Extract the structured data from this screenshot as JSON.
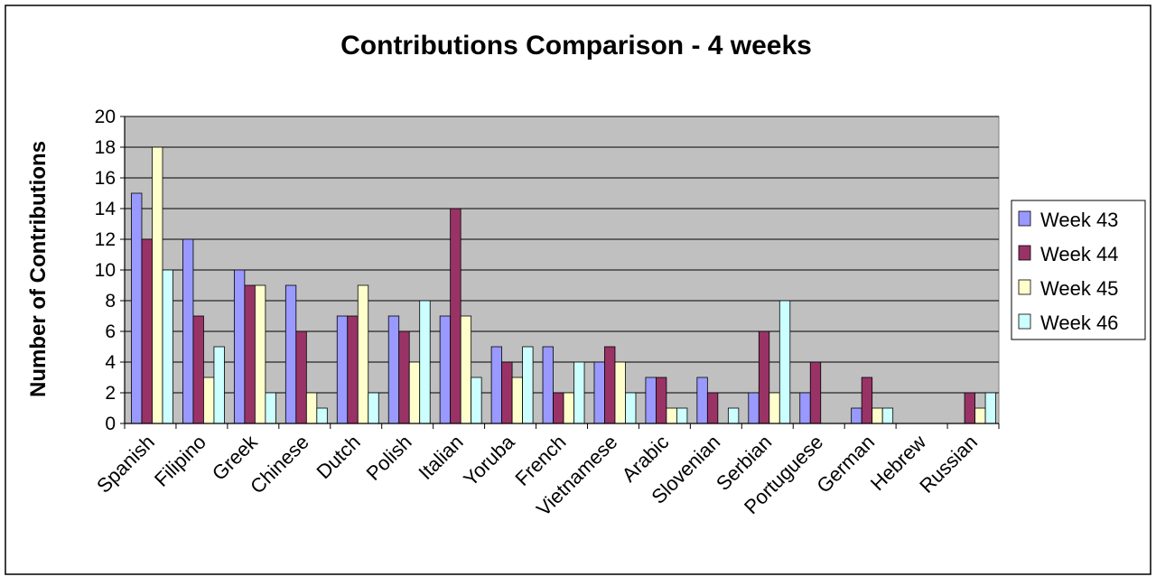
{
  "chart_data": {
    "type": "bar",
    "title": "Contributions Comparison - 4 weeks",
    "xlabel": "",
    "ylabel": "Number of Contributions",
    "ylim": [
      0,
      20
    ],
    "yticks": [
      "0",
      "2",
      "4",
      "6",
      "8",
      "10",
      "12",
      "14",
      "16",
      "18",
      "20"
    ],
    "grid": true,
    "legend_position": "right",
    "categories": [
      "Spanish",
      "Filipino",
      "Greek",
      "Chinese",
      "Dutch",
      "Polish",
      "Italian",
      "Yoruba",
      "French",
      "Vietnamese",
      "Arabic",
      "Slovenian",
      "Serbian",
      "Portuguese",
      "German",
      "Hebrew",
      "Russian"
    ],
    "series": [
      {
        "name": "Week 43",
        "color": "#9999ff",
        "values": [
          15,
          12,
          10,
          9,
          7,
          7,
          7,
          5,
          5,
          4,
          3,
          3,
          2,
          2,
          1,
          0,
          0
        ]
      },
      {
        "name": "Week 44",
        "color": "#993366",
        "values": [
          12,
          7,
          9,
          6,
          7,
          6,
          14,
          4,
          2,
          5,
          3,
          2,
          6,
          4,
          3,
          0,
          2
        ]
      },
      {
        "name": "Week 45",
        "color": "#ffffcc",
        "values": [
          18,
          3,
          9,
          2,
          9,
          4,
          7,
          3,
          2,
          4,
          1,
          0,
          2,
          0,
          1,
          0,
          1
        ]
      },
      {
        "name": "Week 46",
        "color": "#ccffff",
        "values": [
          10,
          5,
          2,
          1,
          2,
          8,
          3,
          5,
          4,
          2,
          1,
          1,
          8,
          0,
          1,
          0,
          2
        ]
      }
    ],
    "plot_background": "#c0c0c0"
  }
}
